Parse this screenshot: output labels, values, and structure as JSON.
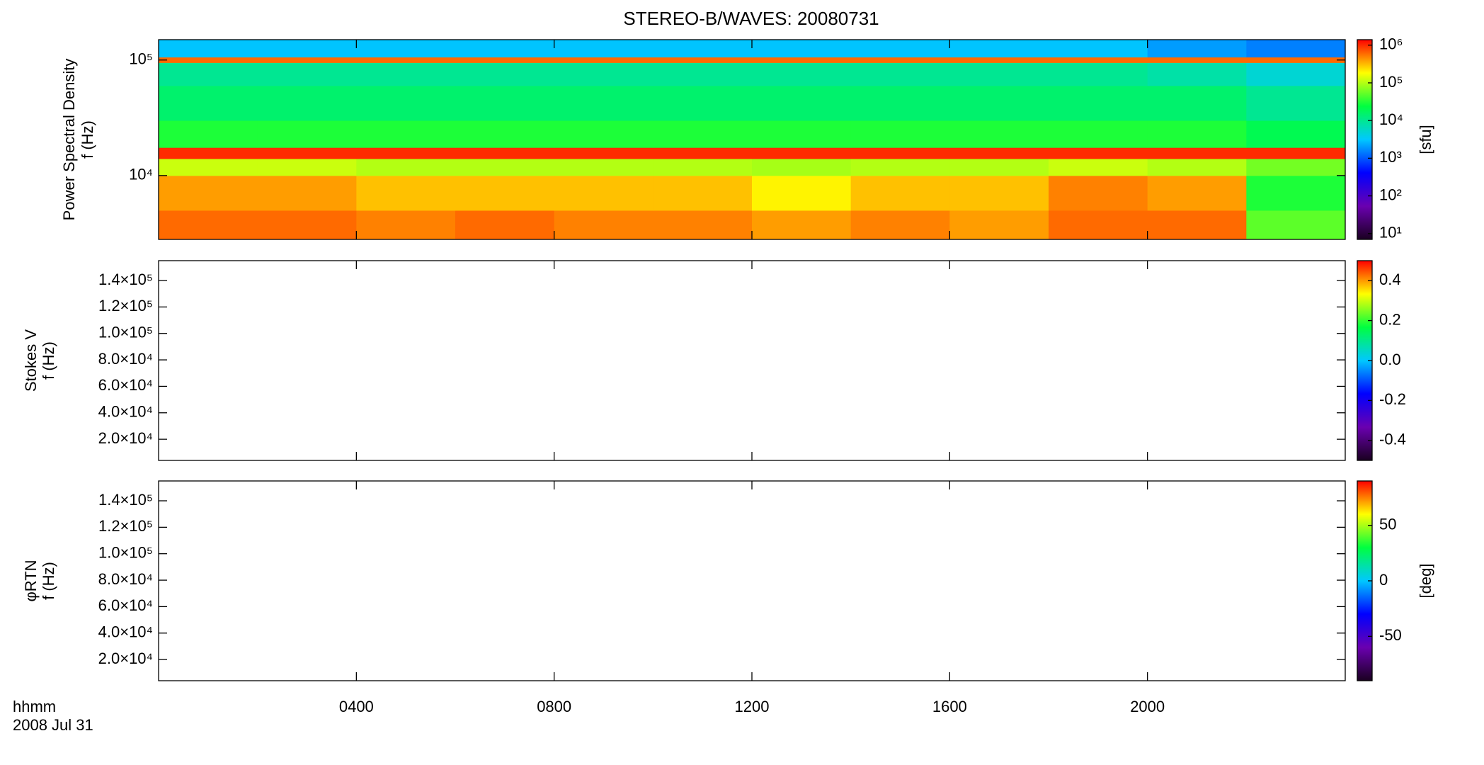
{
  "chart_data": [
    {
      "type": "heatmap",
      "title": "STEREO-B/WAVES: 20080731",
      "ylabel": [
        "Power Spectral Density",
        "f (Hz)"
      ],
      "xlim": [
        0,
        24
      ],
      "x_bins": [
        0,
        2,
        4,
        6,
        8,
        10,
        12,
        14,
        16,
        18,
        20,
        22,
        24
      ],
      "ylim": [
        2800,
        150000
      ],
      "ylog": true,
      "yticks": [
        {
          "value": 10000,
          "label": "10⁴"
        },
        {
          "value": 100000,
          "label": "10⁵"
        }
      ],
      "y_bins": [
        2800,
        5000,
        10000,
        14000,
        17500,
        30000,
        60000,
        95000,
        106000,
        150000
      ],
      "z": [
        [
          600000,
          600000,
          500000,
          600000,
          500000,
          500000,
          400000,
          500000,
          400000,
          600000,
          600000,
          50000
        ],
        [
          400000,
          400000,
          300000,
          300000,
          300000,
          300000,
          200000,
          300000,
          300000,
          500000,
          400000,
          30000
        ],
        [
          120000,
          120000,
          100000,
          100000,
          100000,
          100000,
          90000,
          100000,
          100000,
          120000,
          100000,
          60000
        ],
        [
          1000000,
          1000000,
          1000000,
          1000000,
          1000000,
          1000000,
          1000000,
          1000000,
          1000000,
          1000000,
          1000000,
          1000000
        ],
        [
          30000,
          30000,
          30000,
          30000,
          30000,
          30000,
          30000,
          30000,
          30000,
          30000,
          30000,
          20000
        ],
        [
          15000,
          15000,
          15000,
          15000,
          15000,
          15000,
          15000,
          15000,
          15000,
          15000,
          15000,
          10000
        ],
        [
          10000,
          10000,
          10000,
          10000,
          10000,
          10000,
          10000,
          10000,
          10000,
          10000,
          8000,
          5000
        ],
        [
          600000,
          600000,
          600000,
          600000,
          600000,
          600000,
          600000,
          600000,
          600000,
          600000,
          600000,
          600000
        ],
        [
          3000,
          3000,
          3000,
          3000,
          3000,
          3000,
          3000,
          3000,
          3000,
          3000,
          2000,
          1500
        ]
      ],
      "colorbar": {
        "label": "[sfu]",
        "clim": [
          7,
          1400000
        ],
        "log": true,
        "ticks": [
          {
            "value": 10,
            "label": "10¹"
          },
          {
            "value": 100,
            "label": "10²"
          },
          {
            "value": 1000,
            "label": "10³"
          },
          {
            "value": 10000,
            "label": "10⁴"
          },
          {
            "value": 100000,
            "label": "10⁵"
          },
          {
            "value": 1000000,
            "label": "10⁶"
          }
        ]
      },
      "colormap": [
        "#1a0020",
        "#6a00b0",
        "#0000ff",
        "#00c8ff",
        "#00ff40",
        "#ffff00",
        "#ff0000"
      ]
    },
    {
      "type": "heatmap",
      "ylabel": [
        "Stokes V",
        "f (Hz)"
      ],
      "xlim": [
        0,
        24
      ],
      "ylim": [
        4000,
        155000
      ],
      "ylog": false,
      "yticks": [
        {
          "value": 20000,
          "label": "2.0×10⁴"
        },
        {
          "value": 40000,
          "label": "4.0×10⁴"
        },
        {
          "value": 60000,
          "label": "6.0×10⁴"
        },
        {
          "value": 80000,
          "label": "8.0×10⁴"
        },
        {
          "value": 100000,
          "label": "1.0×10⁵"
        },
        {
          "value": 120000,
          "label": "1.2×10⁵"
        },
        {
          "value": 140000,
          "label": "1.4×10⁵"
        }
      ],
      "colorbar": {
        "clim": [
          -0.5,
          0.5
        ],
        "log": false,
        "ticks": [
          -0.4,
          -0.2,
          {
            "value": 0,
            "label": "0.0"
          },
          0.2,
          0.4
        ]
      },
      "colormap": [
        "#1a0020",
        "#6a00b0",
        "#0000ff",
        "#00c8ff",
        "#00ff40",
        "#ffff00",
        "#ff0000"
      ]
    },
    {
      "type": "heatmap",
      "ylabel": [
        "φRTN",
        "f (Hz)"
      ],
      "xlim": [
        0,
        24
      ],
      "ylim": [
        4000,
        155000
      ],
      "ylog": false,
      "yticks": [
        {
          "value": 20000,
          "label": "2.0×10⁴"
        },
        {
          "value": 40000,
          "label": "4.0×10⁴"
        },
        {
          "value": 60000,
          "label": "6.0×10⁴"
        },
        {
          "value": 80000,
          "label": "8.0×10⁴"
        },
        {
          "value": 100000,
          "label": "1.0×10⁵"
        },
        {
          "value": 120000,
          "label": "1.2×10⁵"
        },
        {
          "value": 140000,
          "label": "1.4×10⁵"
        }
      ],
      "xticks": [
        {
          "value": 4,
          "label": "0400"
        },
        {
          "value": 8,
          "label": "0800"
        },
        {
          "value": 12,
          "label": "1200"
        },
        {
          "value": 16,
          "label": "1600"
        },
        {
          "value": 20,
          "label": "2000"
        }
      ],
      "xlabel": "hhmm",
      "xsublabel": "2008 Jul 31",
      "colorbar": {
        "label": "[deg]",
        "clim": [
          -90,
          90
        ],
        "log": false,
        "ticks": [
          -50,
          0,
          50
        ]
      },
      "colormap": [
        "#1a0020",
        "#6a00b0",
        "#0000ff",
        "#00c8ff",
        "#00ff40",
        "#ffff00",
        "#ff0000"
      ]
    }
  ]
}
